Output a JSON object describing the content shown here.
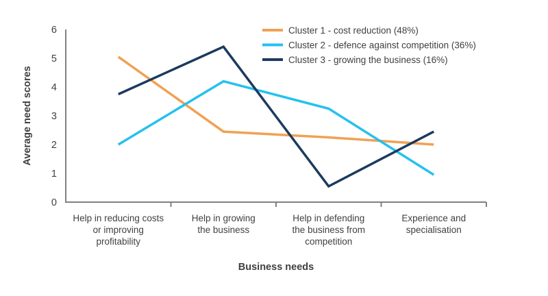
{
  "chart_data": {
    "type": "line",
    "title": "",
    "xlabel": "Business needs",
    "ylabel": "Average need scores",
    "ylim": [
      0,
      6
    ],
    "yticks": [
      0,
      1,
      2,
      3,
      4,
      5,
      6
    ],
    "categories": [
      "Help in reducing costs or improving profitability",
      "Help in growing the business",
      "Help in defending the business from competition",
      "Experience and specialisation"
    ],
    "category_lines": [
      [
        "Help in reducing costs",
        "or improving",
        "profitability"
      ],
      [
        "Help in growing",
        "the business"
      ],
      [
        "Help in defending",
        "the business from",
        "competition"
      ],
      [
        "Experience and",
        "specialisation"
      ]
    ],
    "series": [
      {
        "name": "Cluster 1 - cost reduction (48%)",
        "color": "#F0A153",
        "values": [
          5.05,
          2.45,
          2.25,
          2.0
        ]
      },
      {
        "name": "Cluster 2 - defence against competition (36%)",
        "color": "#24C1EF",
        "values": [
          2.0,
          4.2,
          3.25,
          0.95
        ]
      },
      {
        "name": "Cluster 3 - growing the business (16%)",
        "color": "#1B3A5E",
        "values": [
          3.75,
          5.4,
          0.55,
          2.45
        ]
      }
    ],
    "legend_position": "top-right",
    "grid": false,
    "axis_color": "#808080",
    "text_color": "#404040",
    "background_color": "#FFFFFF"
  }
}
